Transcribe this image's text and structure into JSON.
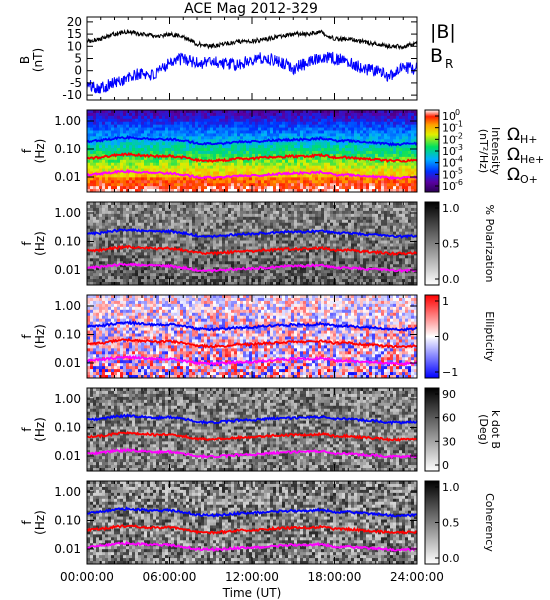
{
  "chart_data": {
    "title": "ACE Mag 2012-329",
    "xlabel": "Time (UT)",
    "x_ticks": [
      "00:00:00",
      "06:00:00",
      "12:00:00",
      "18:00:00",
      "24:00:00"
    ],
    "x_range_hours": [
      0,
      24
    ],
    "panels": [
      {
        "type": "line",
        "ylabel": [
          "B",
          "(nT)"
        ],
        "ylim": [
          -12,
          22
        ],
        "y_ticks": [
          -10,
          -5,
          0,
          5,
          10,
          15,
          20
        ],
        "series": [
          {
            "name": "|B|",
            "color": "#000000",
            "x": [
              0,
              1,
              2,
              3,
              4,
              5,
              6,
              7,
              8,
              9,
              10,
              11,
              12,
              13,
              14,
              15,
              16,
              17,
              18,
              19,
              20,
              21,
              22,
              23,
              24
            ],
            "y": [
              12,
              13,
              15,
              16,
              15,
              14,
              15,
              14,
              11,
              10,
              11,
              12,
              12,
              13,
              14,
              15,
              15,
              16,
              13,
              13,
              12,
              11,
              10,
              10,
              11
            ]
          },
          {
            "name": "B",
            "subscript": "R",
            "color": "#0000ff",
            "x": [
              0,
              1,
              2,
              3,
              4,
              5,
              6,
              7,
              8,
              9,
              10,
              11,
              12,
              13,
              14,
              15,
              16,
              17,
              18,
              19,
              20,
              21,
              22,
              23,
              24
            ],
            "y": [
              -6,
              -7,
              -5,
              -3,
              -1,
              -2,
              4,
              5,
              3,
              4,
              3,
              2,
              5,
              5,
              4,
              1,
              3,
              6,
              5,
              4,
              1,
              0,
              -2,
              1,
              1
            ]
          }
        ]
      },
      {
        "type": "heatmap",
        "colormap": "rainbow",
        "ylabel": [
          "f",
          "(Hz)"
        ],
        "y_ticks": [
          "1.00",
          "0.10",
          "0.01"
        ],
        "y_scale": "log",
        "colorbar": {
          "label": "Intensity",
          "sublabel": "(nT²/Hz)",
          "tick_labels": [
            {
              "base": "10",
              "exp": "0"
            },
            {
              "base": "10",
              "exp": "-1"
            },
            {
              "base": "10",
              "exp": "-2"
            },
            {
              "base": "10",
              "exp": "-3"
            },
            {
              "base": "10",
              "exp": "-4"
            },
            {
              "base": "10",
              "exp": "-5"
            },
            {
              "base": "10",
              "exp": "-6"
            }
          ]
        },
        "legend": [
          {
            "base": "Ω",
            "sub": "H+",
            "color": "#0000ff"
          },
          {
            "base": "Ω",
            "sub": "He+",
            "color": "#ff0000"
          },
          {
            "base": "Ω",
            "sub": "O+",
            "color": "#ff00ff"
          }
        ]
      },
      {
        "type": "heatmap",
        "colormap": "gray",
        "ylabel": [
          "f",
          "(Hz)"
        ],
        "y_ticks": [
          "1.00",
          "0.10",
          "0.01"
        ],
        "y_scale": "log",
        "colorbar": {
          "label": "% Polarization",
          "tick_labels": [
            "1.0",
            "0.5",
            "0.0"
          ]
        }
      },
      {
        "type": "heatmap",
        "colormap": "bluewhitered",
        "ylabel": [
          "f",
          "(Hz)"
        ],
        "y_ticks": [
          "1.00",
          "0.10",
          "0.01"
        ],
        "y_scale": "log",
        "colorbar": {
          "label": "Ellipticity",
          "tick_labels": [
            "1",
            "0",
            "−1"
          ]
        }
      },
      {
        "type": "heatmap",
        "colormap": "gray",
        "ylabel": [
          "f",
          "(Hz)"
        ],
        "y_ticks": [
          "1.00",
          "0.10",
          "0.01"
        ],
        "y_scale": "log",
        "colorbar": {
          "label": "k dot B",
          "sublabel": "(Deg)",
          "tick_labels": [
            "90",
            "60",
            "30",
            "0"
          ]
        }
      },
      {
        "type": "heatmap",
        "colormap": "gray",
        "ylabel": [
          "f",
          "(Hz)"
        ],
        "y_ticks": [
          "1.00",
          "0.10",
          "0.01"
        ],
        "y_scale": "log",
        "colorbar": {
          "label": "Coherency",
          "tick_labels": [
            "1.0",
            "0.5",
            "0.0"
          ]
        }
      }
    ],
    "gyrofrequency_curves": {
      "x": [
        0,
        1,
        2,
        3,
        4,
        5,
        6,
        7,
        8,
        9,
        10,
        11,
        12,
        13,
        14,
        15,
        16,
        17,
        18,
        19,
        20,
        21,
        22,
        23,
        24
      ],
      "H+": [
        0.19,
        0.2,
        0.24,
        0.26,
        0.24,
        0.22,
        0.23,
        0.2,
        0.16,
        0.15,
        0.16,
        0.18,
        0.18,
        0.2,
        0.21,
        0.22,
        0.22,
        0.24,
        0.2,
        0.2,
        0.18,
        0.17,
        0.15,
        0.15,
        0.16
      ],
      "He+": [
        0.047,
        0.05,
        0.06,
        0.065,
        0.06,
        0.055,
        0.058,
        0.05,
        0.04,
        0.038,
        0.04,
        0.045,
        0.045,
        0.05,
        0.053,
        0.055,
        0.055,
        0.06,
        0.05,
        0.05,
        0.045,
        0.042,
        0.038,
        0.038,
        0.04
      ],
      "O+": [
        0.012,
        0.013,
        0.015,
        0.016,
        0.015,
        0.014,
        0.014,
        0.012,
        0.01,
        0.0095,
        0.01,
        0.011,
        0.011,
        0.012,
        0.013,
        0.014,
        0.014,
        0.015,
        0.012,
        0.012,
        0.011,
        0.0105,
        0.0095,
        0.0095,
        0.01
      ]
    }
  }
}
